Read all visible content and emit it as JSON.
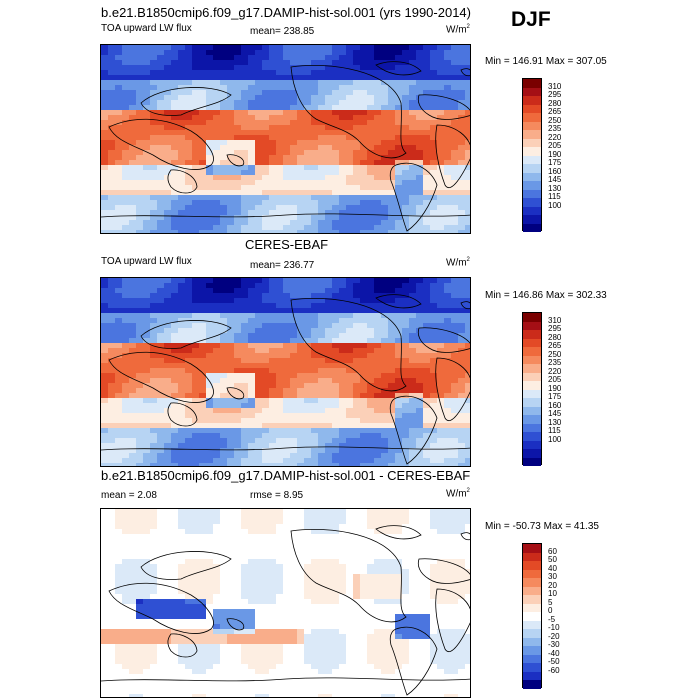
{
  "season": "DJF",
  "panels": [
    {
      "title": "b.e21.B1850cmip6.f09_g17.DAMIP-hist-sol.001 (yrs 1990-2014)",
      "left_label": "TOA upward LW flux",
      "center_label": "mean= 238.85",
      "units": "W/m",
      "units_sup": "2",
      "minmax": "Min = 146.91 Max = 307.05",
      "colorbar_labels": [
        "310",
        "295",
        "280",
        "265",
        "250",
        "235",
        "220",
        "205",
        "190",
        "175",
        "160",
        "145",
        "130",
        "115",
        "100"
      ],
      "colors": [
        "#7a0000",
        "#a50f15",
        "#cb2b1a",
        "#e34a26",
        "#ef6a3c",
        "#f58a5e",
        "#f9ad8a",
        "#fbd0b8",
        "#fdeee2",
        "#dbe9f8",
        "#b7d4f3",
        "#8fb8ec",
        "#6a98e6",
        "#4b75df",
        "#2f50d3",
        "#1b2fc2",
        "#0c15a8",
        "#000080"
      ],
      "map_type": "lw"
    },
    {
      "title": "CERES-EBAF",
      "left_label": "TOA upward LW flux",
      "center_label": "mean= 236.77",
      "units": "W/m",
      "units_sup": "2",
      "minmax": "Min = 146.86 Max = 302.33",
      "colorbar_labels": [
        "310",
        "295",
        "280",
        "265",
        "250",
        "235",
        "220",
        "205",
        "190",
        "175",
        "160",
        "145",
        "130",
        "115",
        "100"
      ],
      "colors": [
        "#7a0000",
        "#a50f15",
        "#cb2b1a",
        "#e34a26",
        "#ef6a3c",
        "#f58a5e",
        "#f9ad8a",
        "#fbd0b8",
        "#fdeee2",
        "#dbe9f8",
        "#b7d4f3",
        "#8fb8ec",
        "#6a98e6",
        "#4b75df",
        "#2f50d3",
        "#1b2fc2",
        "#0c15a8",
        "#000080"
      ],
      "map_type": "lw"
    },
    {
      "title": "b.e21.B1850cmip6.f09_g17.DAMIP-hist-sol.001 - CERES-EBAF",
      "left_label": "mean =  2.08",
      "center_label": "rmse =  8.95",
      "units": "W/m",
      "units_sup": "2",
      "minmax": "Min = -50.73 Max =  41.35",
      "colorbar_labels": [
        "60",
        "50",
        "40",
        "30",
        "20",
        "10",
        "5",
        "0",
        "-5",
        "-10",
        "-20",
        "-30",
        "-40",
        "-50",
        "-60"
      ],
      "colors": [
        "#a50f15",
        "#cb2b1a",
        "#e34a26",
        "#ef6a3c",
        "#f58a5e",
        "#f9ad8a",
        "#fbd0b8",
        "#fdeee2",
        "#ffffff",
        "#dbe9f8",
        "#b7d4f3",
        "#8fb8ec",
        "#6a98e6",
        "#4b75df",
        "#2f50d3",
        "#1b2fc2",
        "#000080"
      ],
      "map_type": "diff"
    }
  ]
}
